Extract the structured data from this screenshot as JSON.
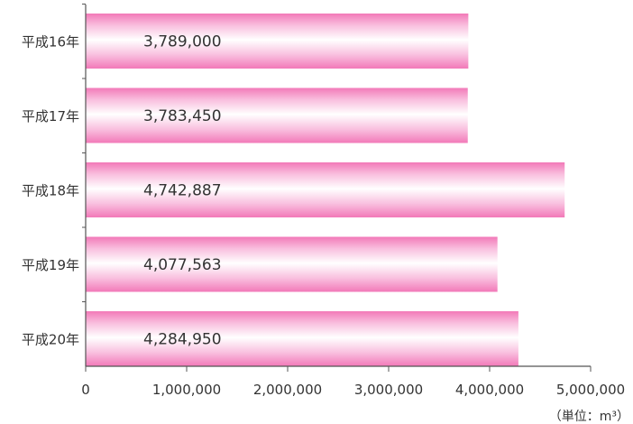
{
  "chart_data": {
    "type": "bar",
    "orientation": "horizontal",
    "categories": [
      "平成16年",
      "平成17年",
      "平成18年",
      "平成19年",
      "平成20年"
    ],
    "values": [
      3789000,
      3783450,
      4742887,
      4077563,
      4284950
    ],
    "value_labels": [
      "3,789,000",
      "3,783,450",
      "4,742,887",
      "4,077,563",
      "4,284,950"
    ],
    "xlim": [
      0,
      5000000
    ],
    "x_ticks": [
      0,
      1000000,
      2000000,
      3000000,
      4000000,
      5000000
    ],
    "x_tick_labels": [
      "0",
      "1,000,000",
      "2,000,000",
      "3,000,000",
      "4,000,000",
      "5,000,000"
    ],
    "unit_label": "（単位：m³）",
    "title": "",
    "xlabel": "",
    "ylabel": "",
    "grid": false,
    "legend": "none",
    "colors": {
      "bar_edge": "#f279b8",
      "bar_mid": "#f9c0df",
      "bar_center": "#ffffff",
      "axis": "#555555"
    }
  }
}
